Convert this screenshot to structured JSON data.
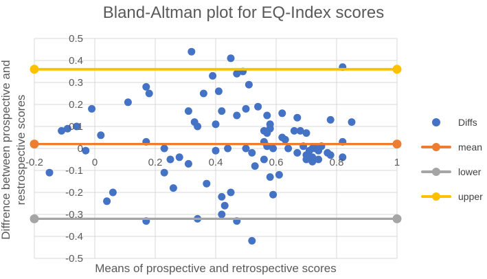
{
  "title": "Bland-Altman plot for EQ-Index scores",
  "colors": {
    "diffs": "#4472C4",
    "mean": "#ED7D31",
    "lower": "#A5A5A5",
    "upper": "#FFC000",
    "gridline": "#D9D9D9",
    "text": "#595959"
  },
  "chart_data": {
    "type": "scatter",
    "title": "Bland-Altman plot for EQ-Index scores",
    "xlabel": "Means of prospective and retrospective scores",
    "ylabel": "Diffrence between prospective and restrospective scores",
    "xlim": [
      -0.2,
      1.0
    ],
    "ylim": [
      -0.5,
      0.5
    ],
    "x_ticks": [
      -0.2,
      0,
      0.2,
      0.4,
      0.6,
      0.8,
      1
    ],
    "x_tick_labels": [
      "-0.2",
      "0",
      "0.2",
      "0.4",
      "0.6",
      "0.8",
      "1"
    ],
    "y_ticks": [
      0.5,
      0.4,
      0.3,
      0.2,
      0.1,
      0,
      -0.1,
      -0.2,
      -0.3,
      -0.4,
      -0.5
    ],
    "y_tick_labels": [
      "0.5",
      "0.4",
      "0.3",
      "0.2",
      "0.1",
      "0",
      "-0.1",
      "-0.2",
      "-0.3",
      "-0.4",
      "-0.5"
    ],
    "grid": true,
    "legend_position": "right",
    "series": [
      {
        "name": "Diffs",
        "type": "scatter",
        "color": "#4472C4",
        "points": [
          [
            0.32,
            0.44
          ],
          [
            0.45,
            0.41
          ],
          [
            0.82,
            0.37
          ],
          [
            0.49,
            0.35
          ],
          [
            0.47,
            0.34
          ],
          [
            0.39,
            0.33
          ],
          [
            0.51,
            0.29
          ],
          [
            0.17,
            0.28
          ],
          [
            0.41,
            0.26
          ],
          [
            0.36,
            0.25
          ],
          [
            0.18,
            0.25
          ],
          [
            0.11,
            0.21
          ],
          [
            0.54,
            0.19
          ],
          [
            0.5,
            0.18
          ],
          [
            -0.01,
            0.18
          ],
          [
            0.31,
            0.17
          ],
          [
            0.42,
            0.17
          ],
          [
            0.62,
            0.16
          ],
          [
            0.57,
            0.15
          ],
          [
            0.47,
            0.15
          ],
          [
            0.67,
            0.14
          ],
          [
            0.78,
            0.13
          ],
          [
            0.85,
            0.12
          ],
          [
            0.33,
            0.12
          ],
          [
            0.4,
            0.11
          ],
          [
            0.58,
            0.11
          ],
          [
            0.34,
            0.1
          ],
          [
            -0.06,
            0.1
          ],
          [
            0.58,
            0.09
          ],
          [
            -0.09,
            0.09
          ],
          [
            -0.11,
            0.08
          ],
          [
            0.56,
            0.08
          ],
          [
            0.66,
            0.08
          ],
          [
            0.68,
            0.08
          ],
          [
            0.57,
            0.07
          ],
          [
            0.7,
            0.07
          ],
          [
            0.02,
            0.06
          ],
          [
            0.62,
            0.05
          ],
          [
            0.63,
            0.04
          ],
          [
            0.17,
            0.03
          ],
          [
            0.56,
            0.03
          ],
          [
            0.82,
            0.03
          ],
          [
            0.57,
            0.01
          ],
          [
            0.69,
            0.01
          ],
          [
            0.75,
            0.01
          ],
          [
            0.23,
            0.0
          ],
          [
            0.5,
            0.0
          ],
          [
            0.44,
            0.0
          ],
          [
            0.59,
            0.0
          ],
          [
            0.64,
            0.0
          ],
          [
            0.72,
            0.0
          ],
          [
            0.73,
            0.0
          ],
          [
            0.4,
            -0.01
          ],
          [
            -0.03,
            -0.01
          ],
          [
            0.71,
            -0.01
          ],
          [
            0.74,
            -0.01
          ],
          [
            0.52,
            -0.02
          ],
          [
            0.67,
            -0.02
          ],
          [
            0.77,
            -0.02
          ],
          [
            0.78,
            -0.03
          ],
          [
            0.7,
            -0.03
          ],
          [
            0.28,
            -0.04
          ],
          [
            0.72,
            -0.04
          ],
          [
            0.82,
            -0.04
          ],
          [
            0.25,
            -0.05
          ],
          [
            0.56,
            -0.05
          ],
          [
            0.7,
            -0.05
          ],
          [
            0.74,
            -0.05
          ],
          [
            0.72,
            -0.06
          ],
          [
            0.31,
            -0.07
          ],
          [
            0.53,
            -0.08
          ],
          [
            0.23,
            -0.11
          ],
          [
            -0.15,
            -0.11
          ],
          [
            0.61,
            -0.12
          ],
          [
            0.58,
            -0.13
          ],
          [
            0.37,
            -0.16
          ],
          [
            0.26,
            -0.18
          ],
          [
            0.45,
            -0.2
          ],
          [
            0.06,
            -0.2
          ],
          [
            0.59,
            -0.21
          ],
          [
            0.42,
            -0.22
          ],
          [
            0.04,
            -0.24
          ],
          [
            0.43,
            -0.26
          ],
          [
            0.42,
            -0.3
          ],
          [
            0.34,
            -0.32
          ],
          [
            0.47,
            -0.33
          ],
          [
            0.17,
            -0.33
          ],
          [
            0.52,
            -0.42
          ]
        ]
      },
      {
        "name": "mean",
        "type": "hline",
        "color": "#ED7D31",
        "y": 0.02,
        "x_range": [
          -0.2,
          1.0
        ]
      },
      {
        "name": "lower",
        "type": "hline",
        "color": "#A5A5A5",
        "y": -0.32,
        "x_range": [
          -0.2,
          1.0
        ]
      },
      {
        "name": "upper",
        "type": "hline",
        "color": "#FFC000",
        "y": 0.36,
        "x_range": [
          -0.2,
          1.0
        ]
      }
    ]
  }
}
